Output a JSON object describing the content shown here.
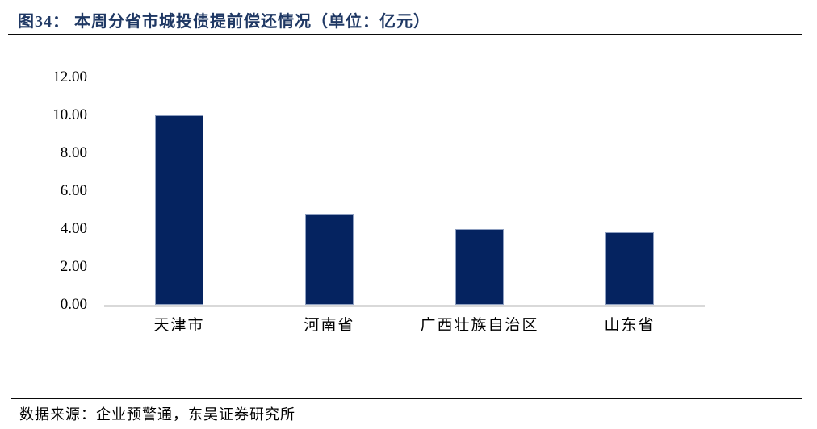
{
  "header": {
    "title": "图34：  本周分省市城投债提前偿还情况（单位：亿元）"
  },
  "footer": {
    "source": "数据来源：企业预警通，东吴证券研究所"
  },
  "colors": {
    "title_navy": "#1F3864",
    "bar_fill": "#052360",
    "bar_border": "#8E9FC0",
    "axis_line_gray": "#D9D9D9",
    "rule_black": "#0a0a0a",
    "text_black": "#000000"
  },
  "chart_data": {
    "type": "bar",
    "title": "本周分省市城投债提前偿还情况",
    "unit": "亿元",
    "categories": [
      "天津市",
      "河南省",
      "广西壮族自治区",
      "山东省"
    ],
    "values": [
      10.0,
      4.77,
      4.0,
      3.83
    ],
    "xlabel": "",
    "ylabel": "",
    "ylim": [
      0,
      12
    ],
    "yticks": [
      0,
      2,
      4,
      6,
      8,
      10,
      12
    ],
    "ytick_labels": [
      "0.00",
      "2.00",
      "4.00",
      "6.00",
      "8.00",
      "10.00",
      "12.00"
    ],
    "grid": false,
    "legend_position": "none",
    "bar_color": "#052360"
  }
}
